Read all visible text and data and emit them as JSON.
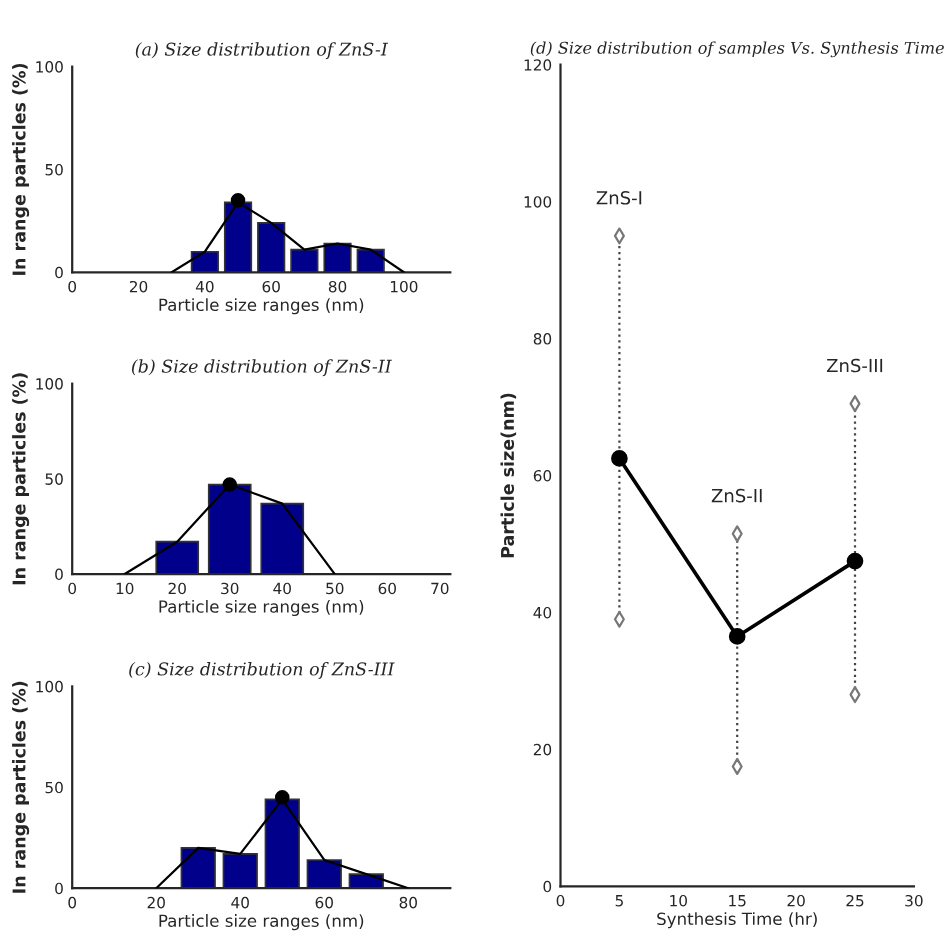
{
  "chart_data": [
    {
      "type": "bar",
      "title": "(a) Size distribution of ZnS-I",
      "xlabel": "Particle size ranges (nm)",
      "ylabel": "In range particles (%)",
      "xlim": [
        0,
        114
      ],
      "xticks": [
        0,
        20,
        40,
        60,
        80,
        100
      ],
      "ylim": [
        0,
        100
      ],
      "yticks": [
        0,
        50,
        100
      ],
      "series": [
        {
          "type": "bar",
          "color": "#00008b",
          "x": [
            40,
            50,
            60,
            70,
            80,
            90
          ],
          "values": [
            10,
            34,
            24,
            11,
            14,
            11
          ]
        },
        {
          "type": "line",
          "color": "#000000",
          "x": [
            30,
            40,
            50,
            60,
            70,
            80,
            90,
            100
          ],
          "values": [
            0,
            10,
            34,
            24,
            11,
            14,
            11,
            0
          ]
        },
        {
          "type": "scatter",
          "color": "#000000",
          "x": [
            50
          ],
          "values": [
            35
          ]
        }
      ]
    },
    {
      "type": "bar",
      "title": "(b) Size distribution of ZnS-II",
      "xlabel": "Particle size ranges (nm)",
      "ylabel": "In range particles (%)",
      "xlim": [
        0,
        72
      ],
      "xticks": [
        0,
        10,
        20,
        30,
        40,
        50,
        60,
        70
      ],
      "ylim": [
        0,
        100
      ],
      "yticks": [
        0,
        50,
        100
      ],
      "series": [
        {
          "type": "bar",
          "color": "#00008b",
          "x": [
            20,
            30,
            40
          ],
          "values": [
            17,
            47,
            37
          ]
        },
        {
          "type": "line",
          "color": "#000000",
          "x": [
            10,
            20,
            30,
            40,
            50
          ],
          "values": [
            0,
            17,
            47,
            37,
            0
          ]
        },
        {
          "type": "scatter",
          "color": "#000000",
          "x": [
            30
          ],
          "values": [
            47
          ]
        }
      ]
    },
    {
      "type": "bar",
      "title": "(c) Size distribution of ZnS-III",
      "xlabel": "Particle size ranges (nm)",
      "ylabel": "In range particles (%)",
      "xlim": [
        0,
        90
      ],
      "xticks": [
        0,
        20,
        40,
        60,
        80
      ],
      "ylim": [
        0,
        100
      ],
      "yticks": [
        0,
        50,
        100
      ],
      "series": [
        {
          "type": "bar",
          "color": "#00008b",
          "x": [
            30,
            40,
            50,
            60,
            70
          ],
          "values": [
            20,
            17,
            44,
            14,
            7
          ]
        },
        {
          "type": "line",
          "color": "#000000",
          "x": [
            20,
            30,
            40,
            50,
            60,
            70,
            80
          ],
          "values": [
            0,
            20,
            17,
            44,
            14,
            7,
            0
          ]
        },
        {
          "type": "scatter",
          "color": "#000000",
          "x": [
            50
          ],
          "values": [
            45
          ]
        }
      ]
    },
    {
      "type": "line",
      "title": "(d) Size distribution of samples Vs. Synthesis Time",
      "xlabel": "Synthesis Time (hr)",
      "ylabel": "Particle size(nm)",
      "xlim": [
        0,
        30
      ],
      "xticks": [
        0,
        5,
        10,
        15,
        20,
        25,
        30
      ],
      "ylim": [
        0,
        120
      ],
      "yticks": [
        0,
        20,
        40,
        60,
        80,
        100,
        120
      ],
      "marker": "circle",
      "series": [
        {
          "type": "line",
          "color": "#000000",
          "x": [
            5,
            15,
            25
          ],
          "values": [
            62.5,
            36.5,
            47.5
          ],
          "errors": [
            [
              39,
              95
            ],
            [
              17.5,
              51.5
            ],
            [
              28,
              70.5
            ]
          ]
        },
        {
          "type": "scatter",
          "marker": "diamond",
          "color": "#777777",
          "x": [
            5,
            15,
            25
          ],
          "values": [
            39,
            17.5,
            28
          ]
        },
        {
          "type": "scatter",
          "marker": "diamond",
          "color": "#777777",
          "x": [
            5,
            15,
            25
          ],
          "values": [
            95,
            51.5,
            70.5
          ]
        }
      ],
      "annotations": [
        "ZnS-I",
        "ZnS-II",
        "ZnS-III"
      ]
    }
  ]
}
